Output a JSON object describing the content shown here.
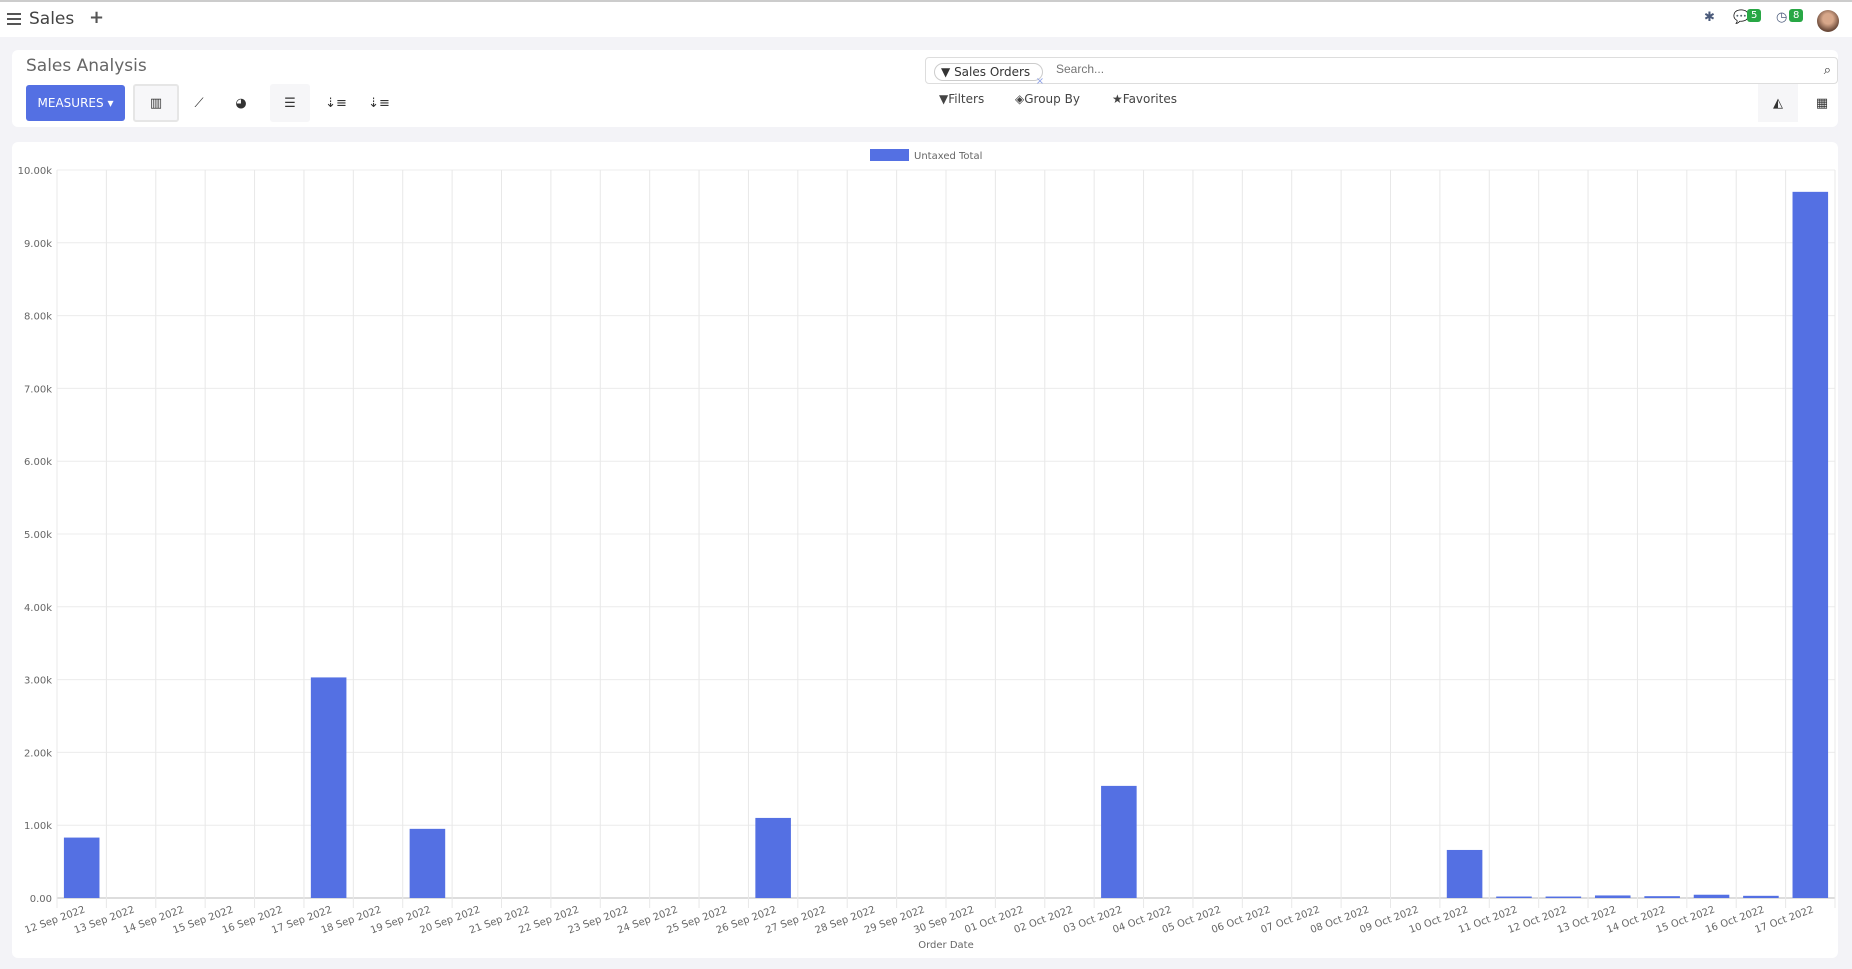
{
  "app": {
    "name": "Sales",
    "new_label": "+"
  },
  "systray": {
    "messages_count": "5",
    "activities_count": "8"
  },
  "control_panel": {
    "title": "Sales Analysis",
    "measures_label": "MEASURES",
    "search": {
      "facet": "Sales Orders",
      "placeholder": "Search..."
    },
    "filters_label": "Filters",
    "groupby_label": "Group By",
    "favorites_label": "Favorites"
  },
  "colors": {
    "bar": "#5470e3",
    "accent": "#5470e3",
    "badge": "#28a745"
  },
  "chart_data": {
    "type": "bar",
    "legend": [
      "Untaxed Total"
    ],
    "legend_position": "top",
    "xlabel": "Order Date",
    "ylabel": "",
    "ylim": [
      0,
      10000
    ],
    "yticks": [
      "0.00",
      "1.00k",
      "2.00k",
      "3.00k",
      "4.00k",
      "5.00k",
      "6.00k",
      "7.00k",
      "8.00k",
      "9.00k",
      "10.00k"
    ],
    "grid": true,
    "categories": [
      "12 Sep 2022",
      "13 Sep 2022",
      "14 Sep 2022",
      "15 Sep 2022",
      "16 Sep 2022",
      "17 Sep 2022",
      "18 Sep 2022",
      "19 Sep 2022",
      "20 Sep 2022",
      "21 Sep 2022",
      "22 Sep 2022",
      "23 Sep 2022",
      "24 Sep 2022",
      "25 Sep 2022",
      "26 Sep 2022",
      "27 Sep 2022",
      "28 Sep 2022",
      "29 Sep 2022",
      "30 Sep 2022",
      "01 Oct 2022",
      "02 Oct 2022",
      "03 Oct 2022",
      "04 Oct 2022",
      "05 Oct 2022",
      "06 Oct 2022",
      "07 Oct 2022",
      "08 Oct 2022",
      "09 Oct 2022",
      "10 Oct 2022",
      "11 Oct 2022",
      "12 Oct 2022",
      "13 Oct 2022",
      "14 Oct 2022",
      "15 Oct 2022",
      "16 Oct 2022",
      "17 Oct 2022"
    ],
    "series": [
      {
        "name": "Untaxed Total",
        "values": [
          830,
          0,
          0,
          0,
          0,
          3030,
          0,
          950,
          0,
          0,
          0,
          0,
          0,
          0,
          1100,
          0,
          0,
          0,
          0,
          0,
          0,
          1540,
          0,
          0,
          0,
          0,
          0,
          0,
          660,
          20,
          20,
          35,
          25,
          45,
          30,
          9700
        ]
      }
    ]
  }
}
